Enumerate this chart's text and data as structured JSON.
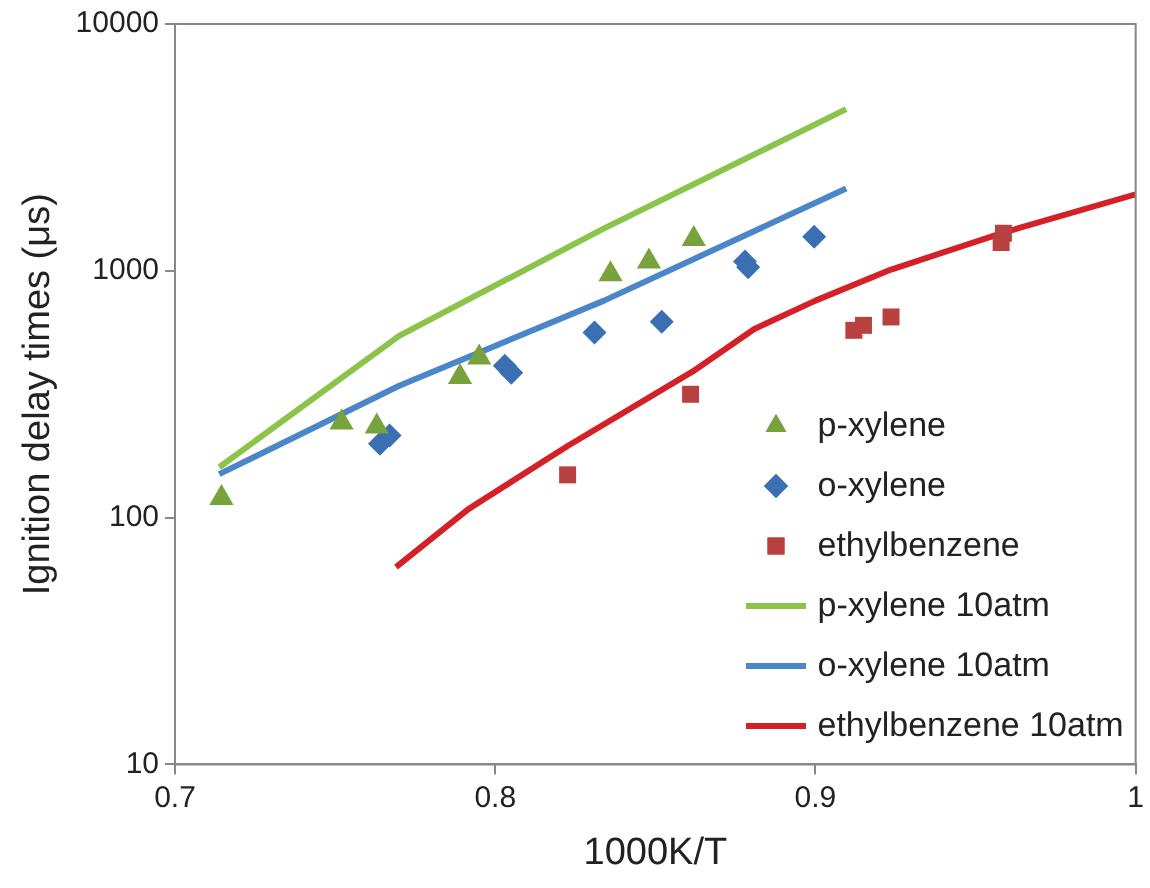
{
  "chart_data": {
    "type": "scatter",
    "xlabel": "1000K/T",
    "ylabel": "Ignition delay times (μs)",
    "log": "y",
    "grid": false,
    "legend": "bottom right",
    "xlim": [
      0.7,
      1
    ],
    "xticks": [
      {
        "value": 0.7,
        "label": "0.7"
      },
      {
        "value": 0.8,
        "label": "0.8"
      },
      {
        "value": 0.9,
        "label": "0.9"
      },
      1
    ],
    "ylim": [
      10,
      10000
    ],
    "yticks": [
      10,
      100,
      1000,
      10000
    ],
    "series": [
      {
        "name": "p-xylene",
        "marker": "triangle",
        "color": "#77a23c",
        "x": [
          0.7145,
          0.752,
          0.763,
          0.789,
          0.795,
          0.836,
          0.848,
          0.862
        ],
        "values": [
          120,
          243,
          234,
          371,
          445,
          968,
          1090,
          1346
        ]
      },
      {
        "name": "o-xylene",
        "marker": "diamond",
        "color": "#3a6fb4",
        "x": [
          0.764,
          0.767,
          0.803,
          0.805,
          0.831,
          0.852,
          0.878,
          0.879,
          0.8996
        ],
        "values": [
          199,
          215,
          412,
          386,
          562,
          621,
          1090,
          1033,
          1374
        ]
      },
      {
        "name": "ethylbenzene",
        "marker": "square",
        "color": "#b8403f",
        "x": [
          0.8226,
          0.861,
          0.912,
          0.915,
          0.9236,
          0.958,
          0.9587
        ],
        "values": [
          149,
          316,
          574,
          601,
          650,
          1303,
          1419
        ]
      },
      {
        "name": "p-xylene 10atm",
        "type": "line",
        "marker": "none",
        "color": "#8cc34a",
        "x": [
          0.7138,
          0.77,
          0.834,
          0.9096
        ],
        "values": [
          160,
          545,
          1486,
          4520
        ]
      },
      {
        "name": "o-xylene 10atm",
        "type": "line",
        "marker": "none",
        "color": "#4a86c8",
        "x": [
          0.7138,
          0.77,
          0.834,
          0.9096
        ],
        "values": [
          150,
          342,
          757,
          2155
        ]
      },
      {
        "name": "ethylbenzene 10atm",
        "type": "line",
        "marker": "none",
        "color": "#d42027",
        "x": [
          0.769,
          0.7915,
          0.8226,
          0.8617,
          0.8809,
          0.9,
          0.9234,
          0.958,
          1.0
        ],
        "values": [
          63,
          108,
          195,
          391,
          581,
          757,
          1009,
          1419,
          2042
        ]
      }
    ]
  }
}
